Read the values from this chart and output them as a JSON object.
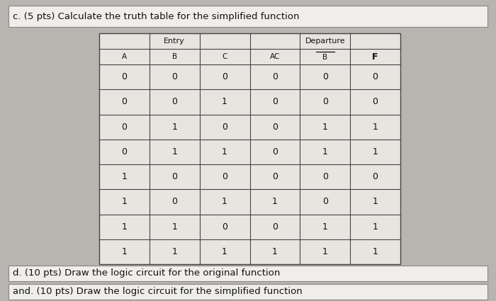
{
  "title_c": "c. (5 pts) Calculate the truth table for the simplified function",
  "title_d": "d. (10 pts) Draw the logic circuit for the original function",
  "title_and": "and. (10 pts) Draw the logic circuit for the simplified function",
  "entry_label": "Entry",
  "departure_label": "Departure",
  "col_headers_display": [
    "A",
    "B",
    "C",
    "AC",
    "B",
    "F"
  ],
  "rows": [
    [
      0,
      0,
      0,
      0,
      0,
      0
    ],
    [
      0,
      0,
      1,
      0,
      0,
      0
    ],
    [
      0,
      1,
      0,
      0,
      1,
      1
    ],
    [
      0,
      1,
      1,
      0,
      1,
      1
    ],
    [
      1,
      0,
      0,
      0,
      0,
      0
    ],
    [
      1,
      0,
      1,
      1,
      0,
      1
    ],
    [
      1,
      1,
      0,
      0,
      1,
      1
    ],
    [
      1,
      1,
      1,
      1,
      1,
      1
    ]
  ],
  "bg_color": "#b8b4b0",
  "table_bg": "#e8e5e1",
  "border_color": "#444444",
  "text_color": "#111111",
  "box_bg": "#f0eeeb",
  "box_edge": "#888888"
}
